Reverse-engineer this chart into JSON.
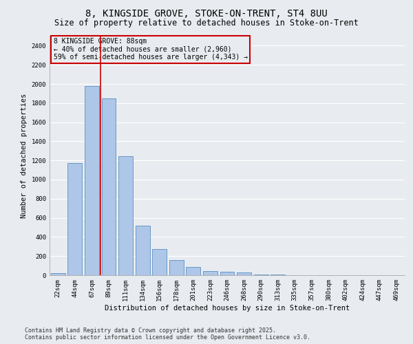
{
  "title": "8, KINGSIDE GROVE, STOKE-ON-TRENT, ST4 8UU",
  "subtitle": "Size of property relative to detached houses in Stoke-on-Trent",
  "xlabel": "Distribution of detached houses by size in Stoke-on-Trent",
  "ylabel": "Number of detached properties",
  "categories": [
    "22sqm",
    "44sqm",
    "67sqm",
    "89sqm",
    "111sqm",
    "134sqm",
    "156sqm",
    "178sqm",
    "201sqm",
    "223sqm",
    "246sqm",
    "268sqm",
    "290sqm",
    "313sqm",
    "335sqm",
    "357sqm",
    "380sqm",
    "402sqm",
    "424sqm",
    "447sqm",
    "469sqm"
  ],
  "values": [
    25,
    1170,
    1975,
    1850,
    1245,
    520,
    275,
    155,
    85,
    45,
    35,
    30,
    5,
    5,
    3,
    2,
    2,
    2,
    1,
    1,
    1
  ],
  "bar_color": "#aec6e8",
  "bar_edge_color": "#5a8fc2",
  "bg_color": "#e8ecf0",
  "grid_color": "#ffffff",
  "annotation_box_color": "#cc0000",
  "annotation_line_color": "#cc0000",
  "annotation_title": "8 KINGSIDE GROVE: 88sqm",
  "annotation_line1": "← 40% of detached houses are smaller (2,960)",
  "annotation_line2": "59% of semi-detached houses are larger (4,343) →",
  "ylim": [
    0,
    2500
  ],
  "yticks": [
    0,
    200,
    400,
    600,
    800,
    1000,
    1200,
    1400,
    1600,
    1800,
    2000,
    2200,
    2400
  ],
  "footer_line1": "Contains HM Land Registry data © Crown copyright and database right 2025.",
  "footer_line2": "Contains public sector information licensed under the Open Government Licence v3.0.",
  "title_fontsize": 10,
  "subtitle_fontsize": 8.5,
  "axis_label_fontsize": 7.5,
  "tick_fontsize": 6.5,
  "annotation_fontsize": 7,
  "footer_fontsize": 6
}
